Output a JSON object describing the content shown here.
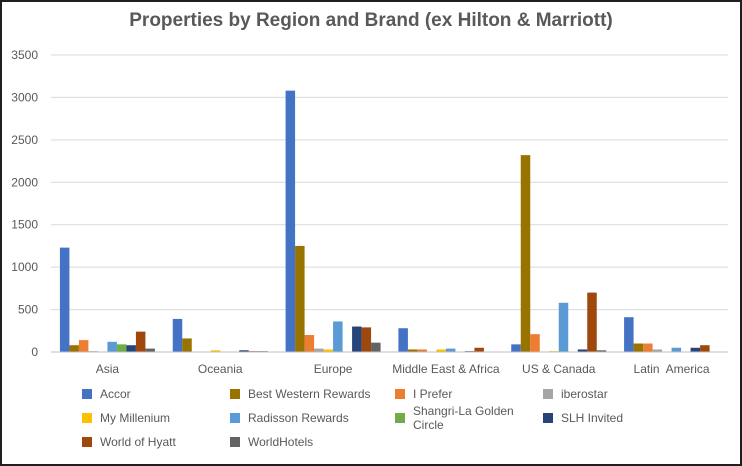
{
  "chart_data": {
    "type": "bar",
    "title": "Properties by Region and Brand (ex Hilton & Marriott)",
    "xlabel": "",
    "ylabel": "",
    "ylim": [
      0,
      3500
    ],
    "yticks": [
      0,
      500,
      1000,
      1500,
      2000,
      2500,
      3000,
      3500
    ],
    "grid": true,
    "legend_position": "bottom",
    "categories": [
      "Asia",
      "Oceania",
      "Europe",
      "Middle East & Africa",
      "US & Canada",
      "Latin  America"
    ],
    "series": [
      {
        "name": "Accor",
        "color": "#4472C4",
        "values": [
          1230,
          390,
          3080,
          280,
          90,
          410
        ]
      },
      {
        "name": "Best Western Rewards",
        "color": "#997300",
        "values": [
          80,
          160,
          1250,
          30,
          2320,
          100
        ]
      },
      {
        "name": "I Prefer",
        "color": "#ED7D31",
        "values": [
          140,
          0,
          200,
          30,
          210,
          100
        ]
      },
      {
        "name": "iberostar",
        "color": "#A5A5A5",
        "values": [
          10,
          0,
          40,
          0,
          0,
          30
        ]
      },
      {
        "name": "My Millenium",
        "color": "#FFC000",
        "values": [
          0,
          20,
          30,
          30,
          10,
          0
        ]
      },
      {
        "name": "Radisson Rewards",
        "color": "#5B9BD5",
        "values": [
          120,
          0,
          360,
          40,
          580,
          50
        ]
      },
      {
        "name": "Shangri-La Golden Circle",
        "color": "#70AD47",
        "values": [
          90,
          0,
          0,
          0,
          0,
          0
        ]
      },
      {
        "name": "SLH Invited",
        "color": "#264478",
        "values": [
          80,
          20,
          300,
          10,
          30,
          50
        ]
      },
      {
        "name": "World of Hyatt",
        "color": "#9E480E",
        "values": [
          240,
          10,
          290,
          50,
          700,
          80
        ]
      },
      {
        "name": "WorldHotels",
        "color": "#636363",
        "values": [
          40,
          10,
          110,
          0,
          20,
          0
        ]
      }
    ]
  }
}
